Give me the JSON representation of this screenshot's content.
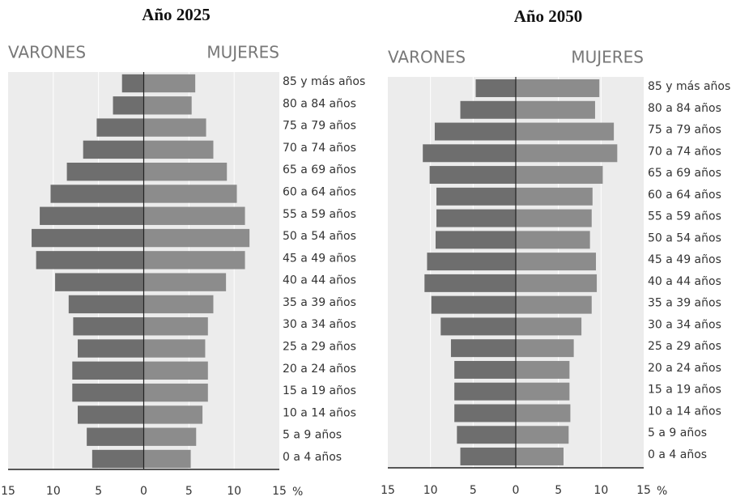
{
  "chart_data": [
    {
      "type": "bar",
      "orientation": "horizontal",
      "title": "Año 2025",
      "left_label": "VARONES",
      "right_label": "MUJERES",
      "xlabel": "%",
      "categories": [
        "85 y más años",
        "80 a 84 años",
        "75 a 79 años",
        "70 a 74 años",
        "65 a 69 años",
        "60 a 64 años",
        "55 a 59 años",
        "50 a 54 años",
        "45 a 49 años",
        "40 a 44 años",
        "35 a 39 años",
        "30 a 34 años",
        "25 a 29 años",
        "20 a 24 años",
        "15 a 19 años",
        "10 a 14 años",
        "5 a 9 años",
        "0 a 4 años"
      ],
      "series": [
        {
          "name": "VARONES",
          "color": "#6e6e6e",
          "values": [
            -2.4,
            -3.4,
            -5.2,
            -6.7,
            -8.5,
            -10.3,
            -11.5,
            -12.4,
            -11.9,
            -9.8,
            -8.3,
            -7.8,
            -7.3,
            -7.9,
            -7.9,
            -7.3,
            -6.3,
            -5.7
          ]
        },
        {
          "name": "MUJERES",
          "color": "#8c8c8c",
          "values": [
            5.7,
            5.3,
            6.9,
            7.7,
            9.2,
            10.3,
            11.2,
            11.7,
            11.2,
            9.1,
            7.7,
            7.1,
            6.8,
            7.1,
            7.1,
            6.5,
            5.8,
            5.2
          ]
        }
      ],
      "xlim": [
        -15,
        15
      ],
      "xticks": [
        {
          "value": -15,
          "label": "15"
        },
        {
          "value": -10,
          "label": "10"
        },
        {
          "value": -5,
          "label": "5"
        },
        0,
        5,
        10,
        15
      ],
      "grid": true
    },
    {
      "type": "bar",
      "orientation": "horizontal",
      "title": "Año 2050",
      "left_label": "VARONES",
      "right_label": "MUJERES",
      "xlabel": "%",
      "categories": [
        "85 y más años",
        "80 a 84 años",
        "75 a 79 años",
        "70 a 74 años",
        "65 a 69 años",
        "60 a 64 años",
        "55 a 59 años",
        "50 a 54 años",
        "45 a 49 años",
        "40 a 44 años",
        "35 a 39 años",
        "30 a 34 años",
        "25 a 29 años",
        "20 a 24 años",
        "15 a 19 años",
        "10 a 14 años",
        "5 a 9 años",
        "0 a 4 años"
      ],
      "series": [
        {
          "name": "VARONES",
          "color": "#6e6e6e",
          "values": [
            -4.7,
            -6.5,
            -9.5,
            -10.9,
            -10.1,
            -9.3,
            -9.3,
            -9.4,
            -10.4,
            -10.7,
            -9.9,
            -8.8,
            -7.6,
            -7.2,
            -7.2,
            -7.2,
            -6.9,
            -6.5
          ]
        },
        {
          "name": "MUJERES",
          "color": "#8c8c8c",
          "values": [
            9.8,
            9.3,
            11.5,
            11.9,
            10.2,
            9.0,
            8.9,
            8.7,
            9.4,
            9.5,
            8.9,
            7.7,
            6.8,
            6.3,
            6.3,
            6.4,
            6.2,
            5.6
          ]
        }
      ],
      "xlim": [
        -15,
        15
      ],
      "xticks": [
        {
          "value": -15,
          "label": "15"
        },
        {
          "value": -10,
          "label": "10"
        },
        {
          "value": -5,
          "label": "5"
        },
        0,
        5,
        10,
        15
      ],
      "grid": true
    }
  ]
}
